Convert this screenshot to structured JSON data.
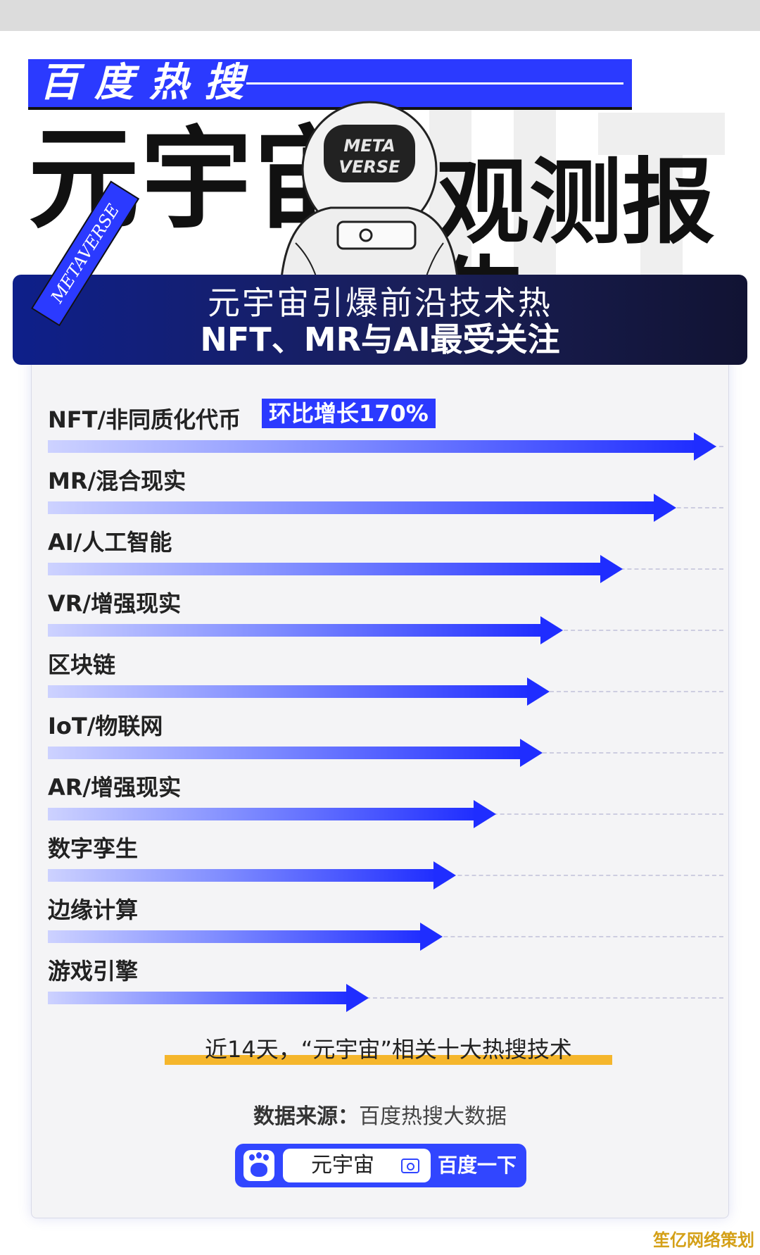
{
  "header": {
    "brand": "百度热搜",
    "title_left": "元宇宙",
    "title_right": "观测报告",
    "helmet_text": "META VERSE"
  },
  "banner": {
    "line1": "元宇宙引爆前沿技术热",
    "line2": "NFT、MR与AI最受关注",
    "ribbon": "METAVERSE"
  },
  "badge": "环比增长170%",
  "chart_data": {
    "type": "bar",
    "orientation": "horizontal",
    "categories": [
      "NFT/非同质化代币",
      "MR/混合现实",
      "AI/人工智能",
      "VR/增强现实",
      "区块链",
      "IoT/物联网",
      "AR/增强现实",
      "数字孪生",
      "边缘计算",
      "游戏引擎"
    ],
    "values": [
      100,
      94,
      86,
      77,
      75,
      74,
      67,
      61,
      59,
      48
    ],
    "value_unit": "relative",
    "xlim": [
      0,
      100
    ]
  },
  "caption": "近14天，“元宇宙”相关十大热搜技术",
  "source": {
    "label": "数据来源：",
    "value": "百度热搜大数据"
  },
  "search": {
    "logo": "du",
    "query": "元宇宙",
    "button": "百度一下"
  },
  "watermark": "笙亿网络策划",
  "colors": {
    "accent": "#2b3aff",
    "banner_dark": "#111333",
    "highlight": "#f5b62c"
  }
}
